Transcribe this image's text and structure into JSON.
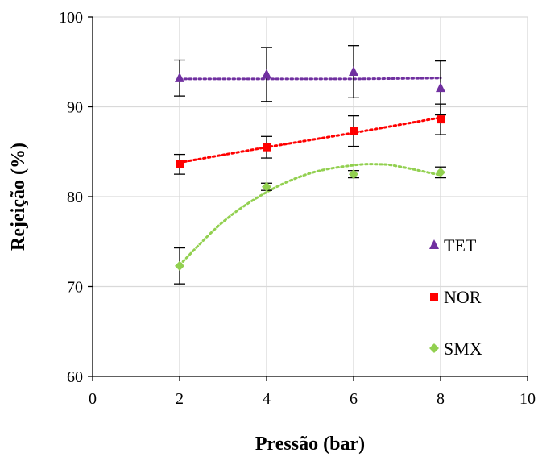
{
  "chart_data": {
    "type": "scatter",
    "xlabel": "Pressão (bar)",
    "ylabel": "Rejeição (%)",
    "xlim": [
      0,
      10
    ],
    "ylim": [
      60,
      100
    ],
    "xticks": [
      0,
      2,
      4,
      6,
      8,
      10
    ],
    "yticks": [
      60,
      70,
      80,
      90,
      100
    ],
    "grid": true,
    "legend_position": "right",
    "series": [
      {
        "name": "TET",
        "marker": "triangle",
        "color": "#7030A0",
        "x": [
          2,
          4,
          6,
          8
        ],
        "y": [
          93.2,
          93.6,
          93.9,
          92.1
        ],
        "error": [
          2.0,
          3.0,
          2.9,
          3.0
        ],
        "trendline": {
          "type": "linear",
          "x": [
            2,
            4,
            6,
            8
          ],
          "y": [
            93.1,
            93.1,
            93.1,
            93.2
          ]
        }
      },
      {
        "name": "NOR",
        "marker": "square",
        "color": "#FF0000",
        "x": [
          2,
          4,
          6,
          8
        ],
        "y": [
          83.6,
          85.5,
          87.3,
          88.6
        ],
        "error": [
          1.1,
          1.2,
          1.7,
          1.7
        ],
        "trendline": {
          "type": "linear",
          "x": [
            2,
            4,
            6,
            8
          ],
          "y": [
            83.8,
            85.5,
            87.1,
            88.8
          ]
        }
      },
      {
        "name": "SMX",
        "marker": "diamond",
        "color": "#92D050",
        "x": [
          2,
          4,
          6,
          8
        ],
        "y": [
          72.3,
          81.1,
          82.5,
          82.7
        ],
        "error": [
          2.0,
          0.4,
          0.4,
          0.6
        ],
        "trendline": {
          "type": "polynomial",
          "x": [
            2,
            3,
            4,
            5,
            6,
            6.6,
            7,
            8
          ],
          "y": [
            72.4,
            77.2,
            80.5,
            82.6,
            83.5,
            83.6,
            83.4,
            82.4
          ]
        }
      }
    ]
  }
}
